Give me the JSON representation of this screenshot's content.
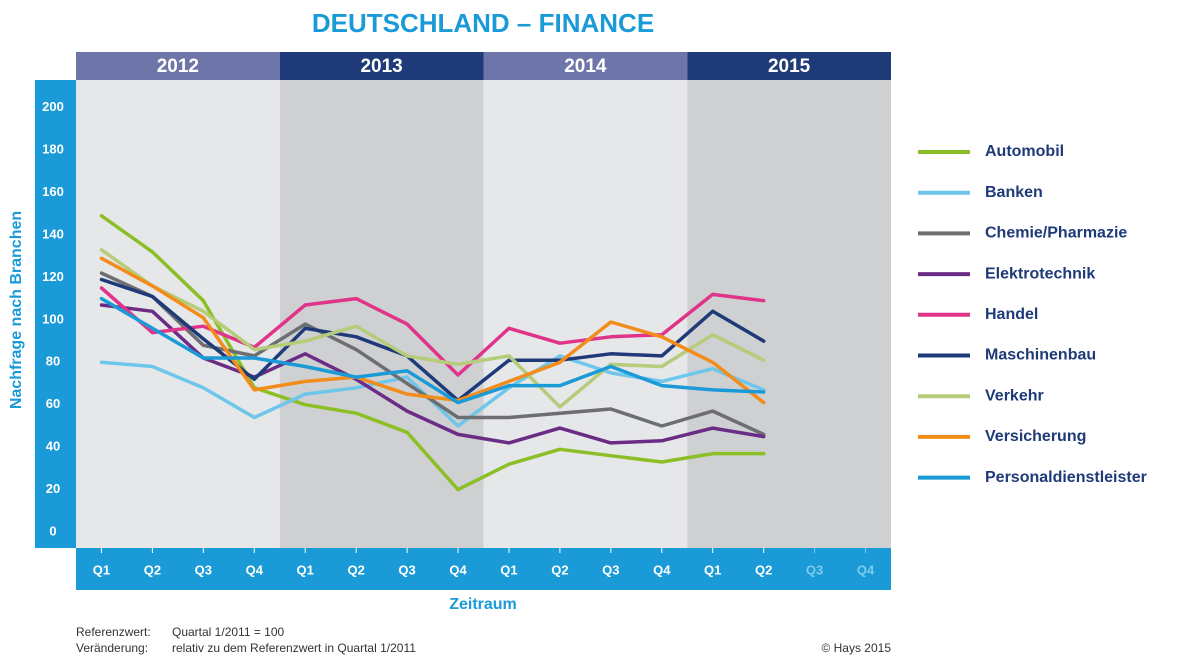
{
  "chart_data": {
    "type": "line",
    "title": "DEUTSCHLAND – FINANCE",
    "years": [
      "2012",
      "2013",
      "2014",
      "2015"
    ],
    "categories": [
      "Q1",
      "Q2",
      "Q3",
      "Q4",
      "Q1",
      "Q2",
      "Q3",
      "Q4",
      "Q1",
      "Q2",
      "Q3",
      "Q4",
      "Q1",
      "Q2",
      "Q3",
      "Q4"
    ],
    "xlabel": "Zeitraum",
    "ylabel": "Nachfrage nach Branchen",
    "ylim": [
      -7.5,
      213
    ],
    "yticks": [
      0,
      20,
      40,
      60,
      80,
      100,
      120,
      140,
      160,
      180,
      200
    ],
    "series": [
      {
        "name": "Automobil",
        "color": "#8cbf26",
        "values": [
          149,
          132,
          109,
          68,
          60,
          56,
          47,
          20,
          32,
          39,
          36,
          33,
          37,
          37,
          null,
          null
        ]
      },
      {
        "name": "Banken",
        "color": "#6ec6ea",
        "values": [
          80,
          78,
          68,
          54,
          65,
          68,
          73,
          50,
          68,
          83,
          75,
          71,
          77,
          67,
          null,
          null
        ]
      },
      {
        "name": "Chemie/Pharmazie",
        "color": "#6d6e71",
        "values": [
          122,
          111,
          88,
          83,
          98,
          86,
          70,
          54,
          54,
          56,
          58,
          50,
          57,
          46,
          null,
          null
        ]
      },
      {
        "name": "Elektrotechnik",
        "color": "#6b2c86",
        "values": [
          107,
          104,
          82,
          73,
          84,
          72,
          57,
          46,
          42,
          49,
          42,
          43,
          49,
          45,
          null,
          null
        ]
      },
      {
        "name": "Handel",
        "color": "#e0338a",
        "values": [
          115,
          94,
          97,
          87,
          107,
          110,
          98,
          74,
          96,
          89,
          92,
          93,
          112,
          109,
          null,
          null
        ]
      },
      {
        "name": "Maschinenbau",
        "color": "#1e3a78",
        "values": [
          119,
          111,
          91,
          72,
          96,
          92,
          83,
          62,
          81,
          81,
          84,
          83,
          104,
          90,
          null,
          null
        ]
      },
      {
        "name": "Verkehr",
        "color": "#b5cc7a",
        "values": [
          133,
          116,
          104,
          86,
          90,
          97,
          83,
          79,
          83,
          59,
          79,
          78,
          93,
          81,
          null,
          null
        ]
      },
      {
        "name": "Versicherung",
        "color": "#f28c1a",
        "values": [
          129,
          116,
          101,
          67,
          71,
          73,
          65,
          62,
          71,
          80,
          99,
          92,
          80,
          61,
          null,
          null
        ]
      },
      {
        "name": "Personaldienstleister",
        "color": "#1a9ad6",
        "values": [
          110,
          96,
          82,
          82,
          78,
          73,
          76,
          61,
          69,
          69,
          78,
          69,
          67,
          66,
          null,
          null
        ]
      }
    ],
    "notes": [
      {
        "label": "Referenzwert:",
        "text": "Quartal 1/2011 = 100"
      },
      {
        "label": "Veränderung:",
        "text": "relativ zu dem Referenzwert in Quartal 1/2011"
      }
    ],
    "source": "© Hays 2015"
  }
}
